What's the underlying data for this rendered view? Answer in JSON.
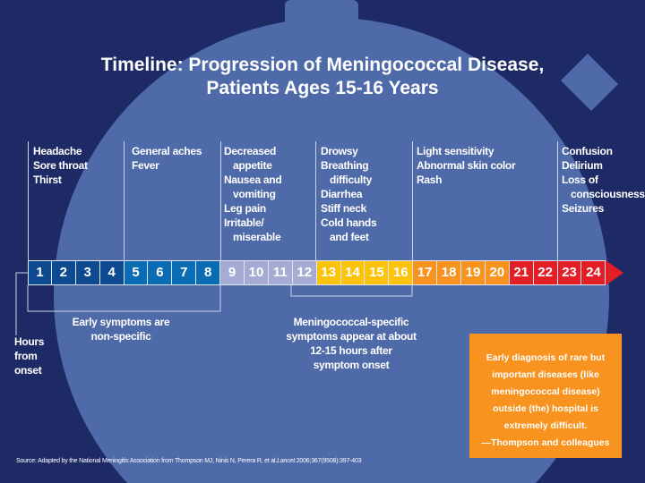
{
  "title": [
    "Timeline: Progression of Meningococcal Disease,",
    "Patients Ages 15-16 Years"
  ],
  "colors": {
    "background": "#1e2a66",
    "stopwatch": "#4f6aa8",
    "hours_1_4": "#0d4a8f",
    "hours_5_8": "#0a6cb4",
    "hours_9_12": "#a4acd3",
    "hours_13_16": "#fcc30b",
    "hours_17_20": "#f7931e",
    "hours_21_24": "#e31e24",
    "quote_box": "#f7931e"
  },
  "symptom_groups": [
    {
      "lines": [
        "Headache",
        "Sore throat",
        "Thirst"
      ]
    },
    {
      "lines": [
        "General aches",
        "Fever"
      ]
    },
    {
      "lines": [
        "Decreased",
        "  appetite",
        "Nausea and",
        "  vomiting",
        "Leg pain",
        "Irritable/",
        "  miserable"
      ]
    },
    {
      "lines": [
        "Drowsy",
        "Breathing",
        "  difficulty",
        "Diarrhea",
        "Stiff neck",
        "Cold hands",
        "  and feet"
      ]
    },
    {
      "lines": [
        "Light sensitivity",
        "Abnormal skin color",
        "Rash"
      ]
    },
    {
      "lines": [
        "Confusion",
        "Delirium",
        "Loss of",
        "  consciousness",
        "Seizures"
      ]
    }
  ],
  "hours": [
    "1",
    "2",
    "3",
    "4",
    "5",
    "6",
    "7",
    "8",
    "9",
    "10",
    "11",
    "12",
    "13",
    "14",
    "15",
    "16",
    "17",
    "18",
    "19",
    "20",
    "21",
    "22",
    "23",
    "24"
  ],
  "hours_label": [
    "Hours",
    "from",
    "onset"
  ],
  "early_note": [
    "Early symptoms are",
    "non-specific"
  ],
  "specific_note": [
    "Meningococcal-specific",
    "symptoms appear at about",
    "12-15 hours after",
    "symptom onset"
  ],
  "quote": [
    "Early diagnosis of rare but",
    "important diseases (like",
    "meningococcal disease)",
    "outside (the) hospital is",
    "extremely difficult.",
    "—Thompson and colleagues"
  ],
  "source": {
    "prefix": "Source: Adapted by the National Meningitis Association from Thompson MJ, Ninis N, Perera R, et al. ",
    "journal": "Lancet.",
    "suffix": " 2006;367(9508):397-403"
  }
}
